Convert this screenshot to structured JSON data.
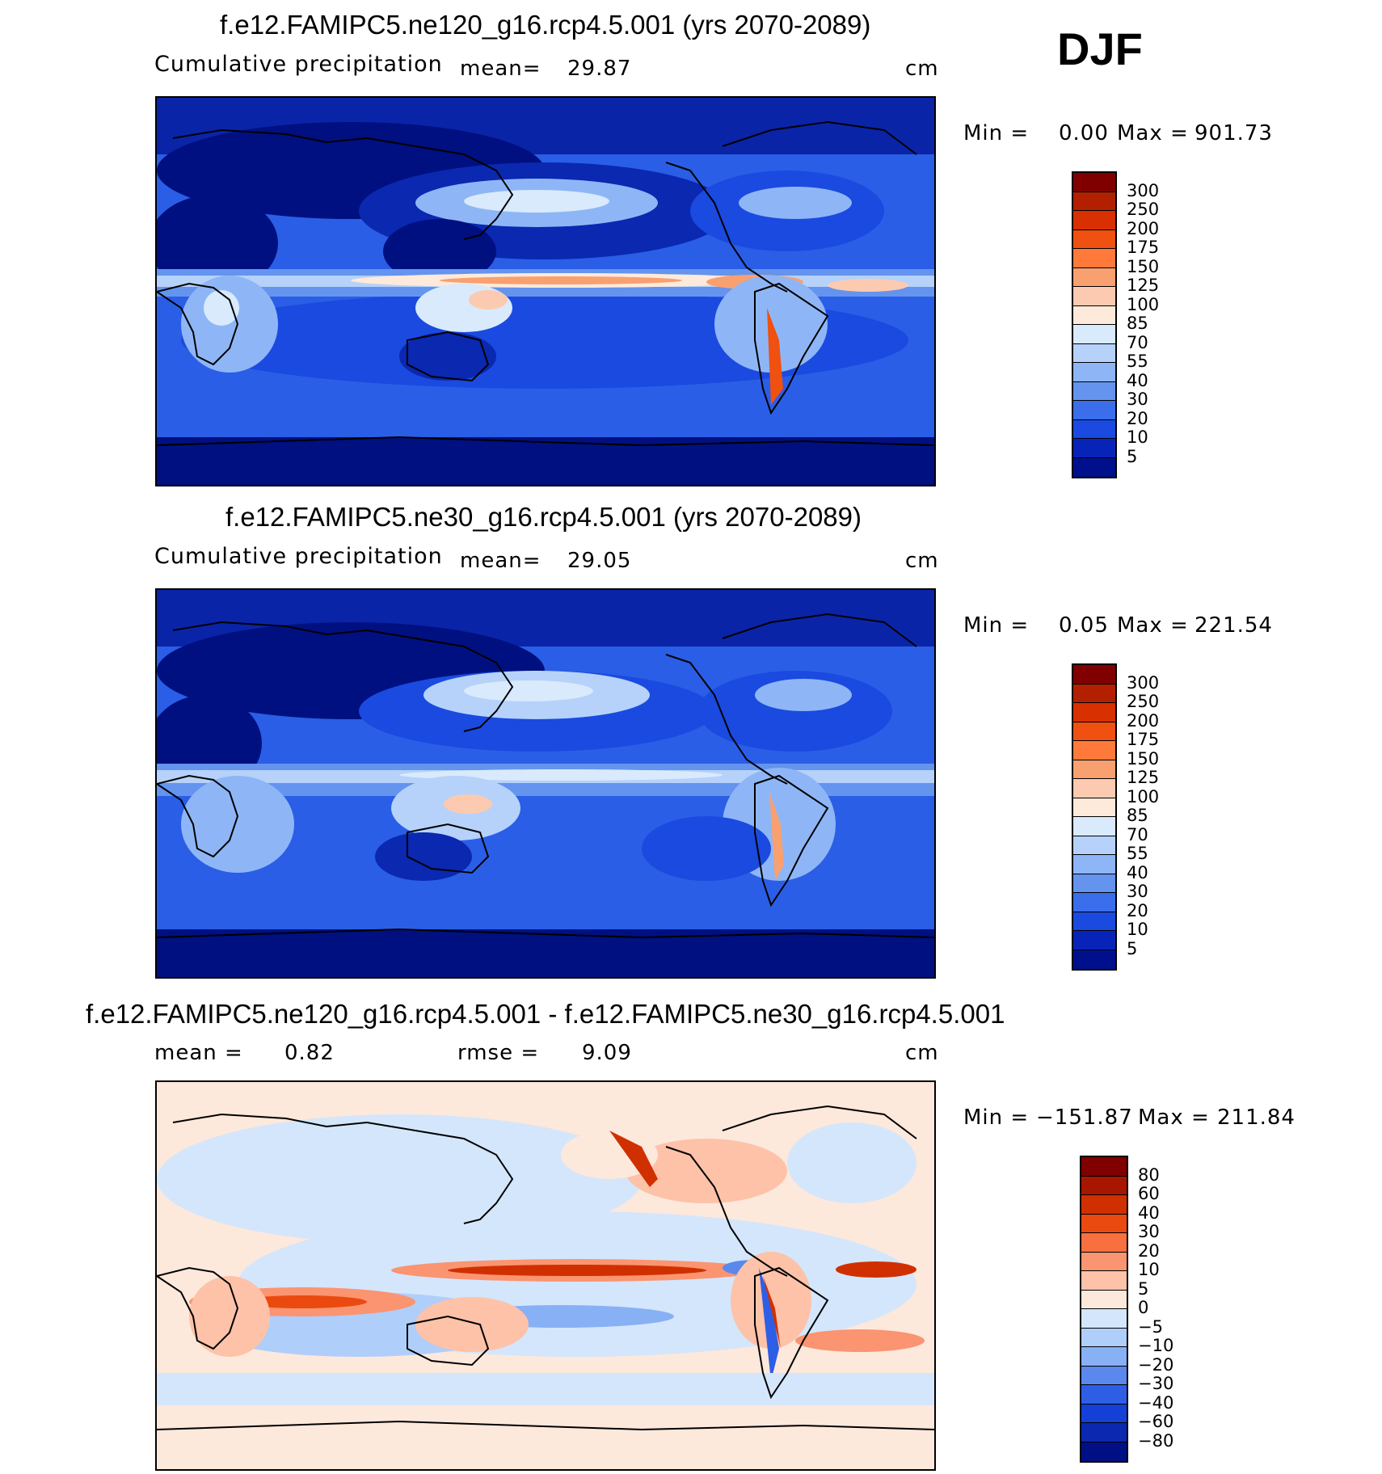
{
  "season": "DJF",
  "units": "cm",
  "panels": [
    {
      "title": "f.e12.FAMIPC5.ne120_g16.rcp4.5.001 (yrs 2070-2089)",
      "variable": "Cumulative precipitation",
      "mean_label": "mean=",
      "mean_value": "29.87",
      "min_label": "Min =",
      "min_value": "0.00",
      "max_label": "Max =",
      "max_value": "901.73",
      "colorbar_labels": [
        "300",
        "250",
        "200",
        "175",
        "150",
        "125",
        "100",
        "85",
        "70",
        "55",
        "40",
        "30",
        "20",
        "10",
        "5"
      ]
    },
    {
      "title": "f.e12.FAMIPC5.ne30_g16.rcp4.5.001 (yrs 2070-2089)",
      "variable": "Cumulative precipitation",
      "mean_label": "mean=",
      "mean_value": "29.05",
      "min_label": "Min =",
      "min_value": "0.05",
      "max_label": "Max =",
      "max_value": "221.54",
      "colorbar_labels": [
        "300",
        "250",
        "200",
        "175",
        "150",
        "125",
        "100",
        "85",
        "70",
        "55",
        "40",
        "30",
        "20",
        "10",
        "5"
      ]
    },
    {
      "title": "f.e12.FAMIPC5.ne120_g16.rcp4.5.001 - f.e12.FAMIPC5.ne30_g16.rcp4.5.001",
      "mean_label": "mean =",
      "mean_value": "0.82",
      "rmse_label": "rmse =",
      "rmse_value": "9.09",
      "min_label": "Min =",
      "min_value": "−151.87",
      "max_label": "Max =",
      "max_value": "211.84",
      "colorbar_labels": [
        "80",
        "60",
        "40",
        "30",
        "20",
        "10",
        "5",
        "0",
        "−5",
        "−10",
        "−20",
        "−30",
        "−40",
        "−60",
        "−80"
      ]
    }
  ],
  "colors": {
    "precip_scale": [
      "#800000",
      "#b22000",
      "#d83000",
      "#f05010",
      "#ff7a3a",
      "#f8a070",
      "#fccab0",
      "#feeadb",
      "#d8eafc",
      "#b6d2fa",
      "#8eb6f6",
      "#6494ee",
      "#3a6eea",
      "#1a4ae0",
      "#0824b8",
      "#00108c"
    ],
    "diff_scale": [
      "#800000",
      "#a81600",
      "#d03000",
      "#ea4a10",
      "#f87040",
      "#fb9470",
      "#fdc2a8",
      "#fde8dc",
      "#d4e6fb",
      "#b0cefa",
      "#88b0f4",
      "#5a88ec",
      "#2e5ee6",
      "#1440d8",
      "#0a28b0",
      "#001084"
    ],
    "ocean_deep": "#001080",
    "land_outline": "#000000"
  },
  "chart_data": [
    {
      "type": "heatmap",
      "title": "f.e12.FAMIPC5.ne120_g16.rcp4.5.001 (yrs 2070-2089)",
      "variable": "Cumulative precipitation",
      "units": "cm",
      "mean": 29.87,
      "min": 0.0,
      "max": 901.73,
      "contour_levels": [
        5,
        10,
        20,
        30,
        40,
        55,
        70,
        85,
        100,
        125,
        150,
        175,
        200,
        250,
        300
      ]
    },
    {
      "type": "heatmap",
      "title": "f.e12.FAMIPC5.ne30_g16.rcp4.5.001 (yrs 2070-2089)",
      "variable": "Cumulative precipitation",
      "units": "cm",
      "mean": 29.05,
      "min": 0.05,
      "max": 221.54,
      "contour_levels": [
        5,
        10,
        20,
        30,
        40,
        55,
        70,
        85,
        100,
        125,
        150,
        175,
        200,
        250,
        300
      ]
    },
    {
      "type": "heatmap",
      "title": "f.e12.FAMIPC5.ne120_g16.rcp4.5.001 - f.e12.FAMIPC5.ne30_g16.rcp4.5.001",
      "units": "cm",
      "mean": 0.82,
      "rmse": 9.09,
      "min": -151.87,
      "max": 211.84,
      "contour_levels": [
        -80,
        -60,
        -40,
        -30,
        -20,
        -10,
        -5,
        0,
        5,
        10,
        20,
        30,
        40,
        60,
        80
      ]
    }
  ]
}
